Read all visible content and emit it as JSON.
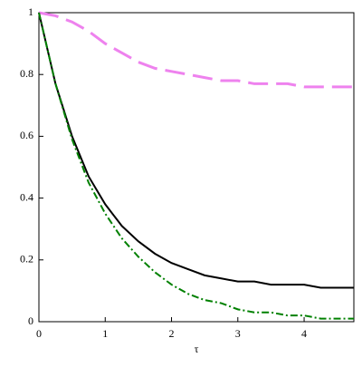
{
  "chart_data": {
    "type": "line",
    "x_label": "τ",
    "x": [
      0,
      0.25,
      0.5,
      0.75,
      1,
      1.25,
      1.5,
      1.75,
      2,
      2.25,
      2.5,
      2.75,
      3,
      3.25,
      3.5,
      3.75,
      4,
      4.25,
      4.5,
      4.75
    ],
    "series": [
      {
        "color": "#ee82ee",
        "style": "dashed",
        "values": [
          1,
          0.99,
          0.97,
          0.94,
          0.9,
          0.87,
          0.84,
          0.82,
          0.81,
          0.8,
          0.79,
          0.78,
          0.78,
          0.77,
          0.77,
          0.77,
          0.76,
          0.76,
          0.76,
          0.76
        ]
      },
      {
        "color": "#000000",
        "style": "solid",
        "values": [
          1,
          0.77,
          0.6,
          0.47,
          0.38,
          0.31,
          0.26,
          0.22,
          0.19,
          0.17,
          0.15,
          0.14,
          0.13,
          0.13,
          0.12,
          0.12,
          0.12,
          0.11,
          0.11,
          0.11
        ]
      },
      {
        "color": "#008000",
        "style": "dashdot",
        "values": [
          1,
          0.77,
          0.59,
          0.45,
          0.35,
          0.27,
          0.21,
          0.16,
          0.12,
          0.09,
          0.07,
          0.06,
          0.04,
          0.03,
          0.03,
          0.02,
          0.02,
          0.01,
          0.01,
          0.01
        ]
      }
    ],
    "xlim": [
      0,
      4.75
    ],
    "xticks": [
      0,
      1,
      2,
      3,
      4
    ],
    "ylim": [
      0,
      1
    ],
    "yticks": [
      0,
      0.2,
      0.4,
      0.6,
      0.8,
      1
    ],
    "grid": false
  }
}
